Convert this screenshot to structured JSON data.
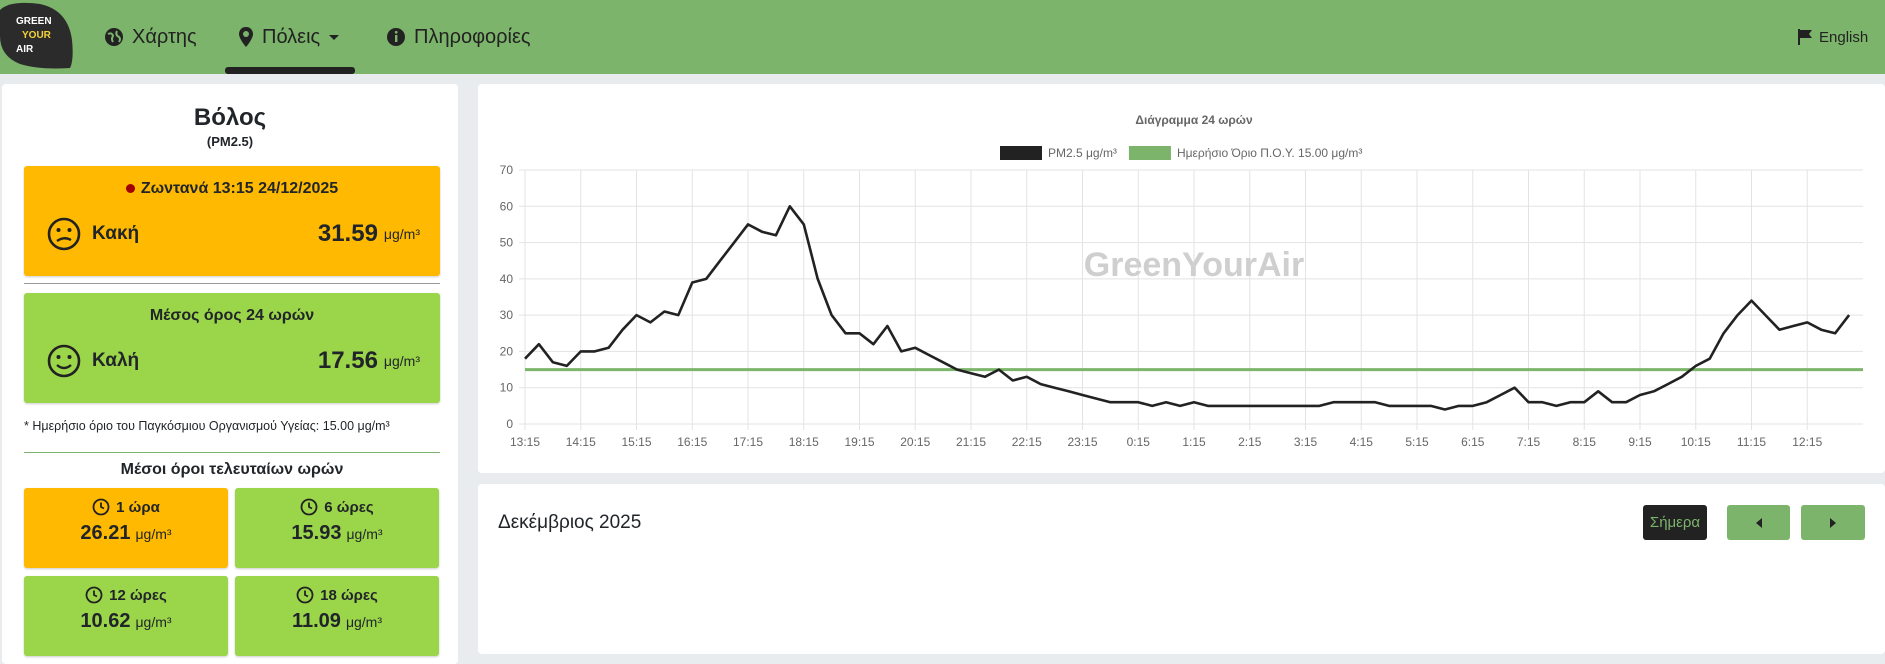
{
  "nav": {
    "logo": [
      "GREEN",
      "YOUR",
      "AIR"
    ],
    "items": [
      "Χάρτης",
      "Πόλεις",
      "Πληροφορίες"
    ],
    "language": "English"
  },
  "station": {
    "city": "Βόλος",
    "pollutant": "(PM2.5)",
    "live": {
      "label": "Ζωντανά 13:15 24/12/2025",
      "status": "Κακή",
      "value": "31.59",
      "unit": "μg/m³",
      "color": "#ffb900"
    },
    "average_24h": {
      "label": "Μέσος όρος 24 ωρών",
      "status": "Καλή",
      "value": "17.56",
      "unit": "μg/m³",
      "color": "#9bd54a"
    },
    "note": "* Ημερήσιο όριο του Παγκόσμιου Οργανισμού Υγείας: 15.00 μg/m³",
    "recent_title": "Μέσοι όροι τελευταίων ωρών",
    "recent": [
      {
        "label": "1 ώρα",
        "value": "26.21",
        "unit": "μg/m³",
        "color": "#ffb900"
      },
      {
        "label": "6 ώρες",
        "value": "15.93",
        "unit": "μg/m³",
        "color": "#9bd54a"
      },
      {
        "label": "12 ώρες",
        "value": "10.62",
        "unit": "μg/m³",
        "color": "#9bd54a"
      },
      {
        "label": "18 ώρες",
        "value": "11.09",
        "unit": "μg/m³",
        "color": "#9bd54a"
      }
    ]
  },
  "chart_data": {
    "type": "line",
    "title": "Διάγραμμα 24 ωρών",
    "watermark": "GreenYourAir",
    "categories": [
      "13:15",
      null,
      null,
      null,
      "14:15",
      null,
      null,
      null,
      "15:15",
      null,
      null,
      null,
      "16:15",
      null,
      null,
      null,
      "17:15",
      null,
      null,
      null,
      "18:15",
      null,
      null,
      null,
      "19:15",
      null,
      null,
      null,
      "20:15",
      null,
      null,
      null,
      "21:15",
      null,
      null,
      null,
      "22:15",
      null,
      null,
      null,
      "23:15",
      null,
      null,
      null,
      "0:15",
      null,
      null,
      null,
      "1:15",
      null,
      null,
      null,
      "2:15",
      null,
      null,
      null,
      "3:15",
      null,
      null,
      null,
      "4:15",
      null,
      null,
      null,
      "5:15",
      null,
      null,
      null,
      "6:15",
      null,
      null,
      null,
      "7:15",
      null,
      null,
      null,
      "8:15",
      null,
      null,
      null,
      "9:15",
      null,
      null,
      null,
      "10:15",
      null,
      null,
      null,
      "11:15",
      null,
      null,
      null,
      "12:15",
      null,
      null,
      null
    ],
    "series": [
      {
        "name": "PM2.5 μg/m³",
        "color": "#222222",
        "values": [
          18,
          22,
          17,
          16,
          20,
          20,
          21,
          26,
          30,
          28,
          31,
          30,
          39,
          40,
          45,
          50,
          55,
          53,
          52,
          60,
          55,
          40,
          30,
          25,
          25,
          22,
          27,
          20,
          21,
          19,
          17,
          15,
          14,
          13,
          15,
          12,
          13,
          11,
          10,
          9,
          8,
          7,
          6,
          6,
          6,
          5,
          6,
          5,
          6,
          5,
          5,
          5,
          5,
          5,
          5,
          5,
          5,
          5,
          6,
          6,
          6,
          6,
          5,
          5,
          5,
          5,
          4,
          5,
          5,
          6,
          8,
          10,
          6,
          6,
          5,
          6,
          6,
          9,
          6,
          6,
          8,
          9,
          11,
          13,
          16,
          18,
          25,
          30,
          34,
          30,
          26,
          27,
          28,
          26,
          25,
          30
        ]
      }
    ],
    "reference_line": {
      "name": "Ημερήσιο Όριο Π.Ο.Υ. 15.00 μg/m³",
      "color": "#7cb46b",
      "value": 15
    },
    "ylim": [
      0,
      70
    ],
    "yticks": [
      0,
      10,
      20,
      30,
      40,
      50,
      60,
      70
    ],
    "grid": true
  },
  "calendar": {
    "title": "Δεκέμβριος 2025",
    "today": "Σήμερα"
  }
}
